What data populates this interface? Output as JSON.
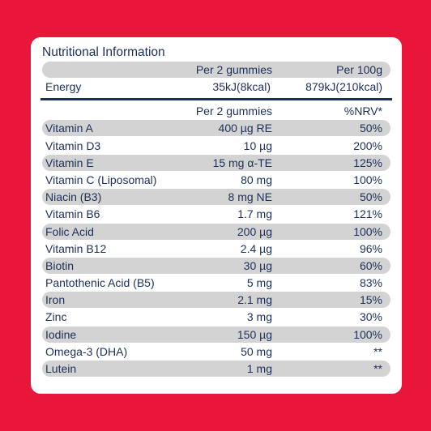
{
  "title": "Nutritional Information",
  "energy_header": {
    "col1": "Per 2 gummies",
    "col2": "Per 100g"
  },
  "energy": {
    "label": "Energy",
    "per_serving": "35kJ(8kcal)",
    "per_100g": "879kJ(210kcal)"
  },
  "table_header": {
    "col1": "Per 2 gummies",
    "col2": "%NRV*"
  },
  "rows": [
    {
      "name": "Vitamin A",
      "amount": "400 µg RE",
      "nrv": "50%"
    },
    {
      "name": "Vitamin D3",
      "amount": "10 µg",
      "nrv": "200%"
    },
    {
      "name": "Vitamin E",
      "amount": "15 mg α-TE",
      "nrv": "125%"
    },
    {
      "name": "Vitamin C (Liposomal)",
      "amount": "80 mg",
      "nrv": "100%"
    },
    {
      "name": "Niacin (B3)",
      "amount": "8 mg NE",
      "nrv": "50%"
    },
    {
      "name": "Vitamin B6",
      "amount": "1.7 mg",
      "nrv": "121%"
    },
    {
      "name": "Folic Acid",
      "amount": "200 µg",
      "nrv": "100%"
    },
    {
      "name": "Vitamin B12",
      "amount": "2.4 µg",
      "nrv": "96%"
    },
    {
      "name": "Biotin",
      "amount": "30 µg",
      "nrv": "60%"
    },
    {
      "name": "Pantothenic Acid (B5)",
      "amount": "5 mg",
      "nrv": "83%"
    },
    {
      "name": "Iron",
      "amount": "2.1 mg",
      "nrv": "15%"
    },
    {
      "name": "Zinc",
      "amount": "3 mg",
      "nrv": "30%"
    },
    {
      "name": "Iodine",
      "amount": "150 µg",
      "nrv": "100%"
    },
    {
      "name": "Omega-3 (DHA)",
      "amount": "50 mg",
      "nrv": "**"
    },
    {
      "name": "Lutein",
      "amount": "1 mg",
      "nrv": "**"
    }
  ]
}
